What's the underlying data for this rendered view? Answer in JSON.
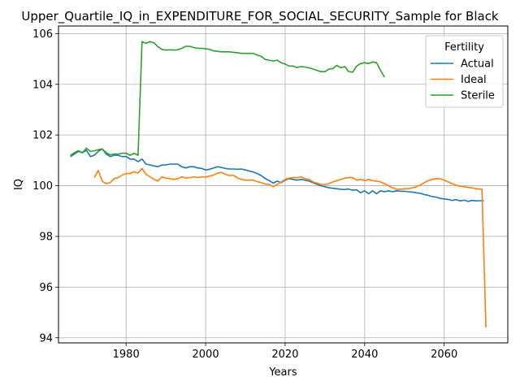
{
  "chart_data": {
    "type": "line",
    "title": "Upper_Quartile_IQ_in_EXPENDITURE_FOR_SOCIAL_SECURITY_Sample for Black",
    "xlabel": "Years",
    "ylabel": "IQ",
    "xlim": [
      1963,
      2076
    ],
    "ylim": [
      93.8,
      106.3
    ],
    "xticks": [
      1980,
      2000,
      2020,
      2040,
      2060
    ],
    "yticks": [
      94,
      96,
      98,
      100,
      102,
      104,
      106
    ],
    "grid": true,
    "legend": {
      "title": "Fertility",
      "position": "upper-right"
    },
    "series": [
      {
        "name": "Actual",
        "color": "#1f77b4",
        "points": [
          [
            1966,
            101.15
          ],
          [
            1967,
            101.25
          ],
          [
            1968,
            101.35
          ],
          [
            1969,
            101.3
          ],
          [
            1970,
            101.4
          ],
          [
            1971,
            101.15
          ],
          [
            1972,
            101.2
          ],
          [
            1973,
            101.35
          ],
          [
            1974,
            101.45
          ],
          [
            1975,
            101.25
          ],
          [
            1976,
            101.15
          ],
          [
            1977,
            101.2
          ],
          [
            1978,
            101.2
          ],
          [
            1979,
            101.15
          ],
          [
            1980,
            101.15
          ],
          [
            1981,
            101.05
          ],
          [
            1982,
            101.05
          ],
          [
            1983,
            100.95
          ],
          [
            1984,
            101.05
          ],
          [
            1985,
            100.85
          ],
          [
            1986,
            100.82
          ],
          [
            1987,
            100.78
          ],
          [
            1988,
            100.75
          ],
          [
            1989,
            100.82
          ],
          [
            1990,
            100.82
          ],
          [
            1991,
            100.85
          ],
          [
            1992,
            100.85
          ],
          [
            1993,
            100.85
          ],
          [
            1994,
            100.75
          ],
          [
            1995,
            100.7
          ],
          [
            1996,
            100.75
          ],
          [
            1997,
            100.75
          ],
          [
            1998,
            100.7
          ],
          [
            1999,
            100.68
          ],
          [
            2000,
            100.62
          ],
          [
            2001,
            100.65
          ],
          [
            2002,
            100.7
          ],
          [
            2003,
            100.75
          ],
          [
            2004,
            100.72
          ],
          [
            2005,
            100.68
          ],
          [
            2006,
            100.66
          ],
          [
            2007,
            100.66
          ],
          [
            2008,
            100.65
          ],
          [
            2009,
            100.66
          ],
          [
            2010,
            100.62
          ],
          [
            2011,
            100.58
          ],
          [
            2012,
            100.54
          ],
          [
            2013,
            100.48
          ],
          [
            2014,
            100.4
          ],
          [
            2015,
            100.28
          ],
          [
            2016,
            100.2
          ],
          [
            2017,
            100.1
          ],
          [
            2018,
            100.18
          ],
          [
            2019,
            100.12
          ],
          [
            2020,
            100.22
          ],
          [
            2021,
            100.28
          ],
          [
            2022,
            100.25
          ],
          [
            2023,
            100.22
          ],
          [
            2024,
            100.25
          ],
          [
            2025,
            100.22
          ],
          [
            2026,
            100.18
          ],
          [
            2027,
            100.12
          ],
          [
            2028,
            100.06
          ],
          [
            2029,
            100.0
          ],
          [
            2030,
            99.96
          ],
          [
            2031,
            99.92
          ],
          [
            2032,
            99.9
          ],
          [
            2033,
            99.88
          ],
          [
            2034,
            99.86
          ],
          [
            2035,
            99.85
          ],
          [
            2036,
            99.87
          ],
          [
            2037,
            99.82
          ],
          [
            2038,
            99.84
          ],
          [
            2039,
            99.72
          ],
          [
            2040,
            99.8
          ],
          [
            2041,
            99.68
          ],
          [
            2042,
            99.8
          ],
          [
            2043,
            99.68
          ],
          [
            2044,
            99.8
          ],
          [
            2045,
            99.76
          ],
          [
            2046,
            99.8
          ],
          [
            2047,
            99.76
          ],
          [
            2048,
            99.8
          ],
          [
            2049,
            99.78
          ],
          [
            2050,
            99.78
          ],
          [
            2051,
            99.76
          ],
          [
            2052,
            99.75
          ],
          [
            2053,
            99.72
          ],
          [
            2054,
            99.7
          ],
          [
            2055,
            99.65
          ],
          [
            2056,
            99.62
          ],
          [
            2057,
            99.57
          ],
          [
            2058,
            99.55
          ],
          [
            2059,
            99.5
          ],
          [
            2060,
            99.48
          ],
          [
            2061,
            99.46
          ],
          [
            2062,
            99.42
          ],
          [
            2063,
            99.45
          ],
          [
            2064,
            99.4
          ],
          [
            2065,
            99.43
          ],
          [
            2066,
            99.38
          ],
          [
            2067,
            99.42
          ],
          [
            2068,
            99.4
          ],
          [
            2069,
            99.41
          ],
          [
            2070,
            99.41
          ]
        ]
      },
      {
        "name": "Ideal",
        "color": "#ff7f0e",
        "points": [
          [
            1972,
            100.32
          ],
          [
            1973,
            100.6
          ],
          [
            1974,
            100.18
          ],
          [
            1975,
            100.08
          ],
          [
            1976,
            100.12
          ],
          [
            1977,
            100.28
          ],
          [
            1978,
            100.32
          ],
          [
            1979,
            100.42
          ],
          [
            1980,
            100.48
          ],
          [
            1981,
            100.48
          ],
          [
            1982,
            100.55
          ],
          [
            1983,
            100.5
          ],
          [
            1984,
            100.68
          ],
          [
            1985,
            100.45
          ],
          [
            1986,
            100.35
          ],
          [
            1987,
            100.25
          ],
          [
            1988,
            100.18
          ],
          [
            1989,
            100.35
          ],
          [
            1990,
            100.3
          ],
          [
            1991,
            100.28
          ],
          [
            1992,
            100.25
          ],
          [
            1993,
            100.28
          ],
          [
            1994,
            100.35
          ],
          [
            1995,
            100.3
          ],
          [
            1996,
            100.32
          ],
          [
            1997,
            100.35
          ],
          [
            1998,
            100.32
          ],
          [
            1999,
            100.35
          ],
          [
            2000,
            100.34
          ],
          [
            2001,
            100.38
          ],
          [
            2002,
            100.42
          ],
          [
            2003,
            100.5
          ],
          [
            2004,
            100.52
          ],
          [
            2005,
            100.45
          ],
          [
            2006,
            100.4
          ],
          [
            2007,
            100.42
          ],
          [
            2008,
            100.3
          ],
          [
            2009,
            100.25
          ],
          [
            2010,
            100.22
          ],
          [
            2011,
            100.22
          ],
          [
            2012,
            100.22
          ],
          [
            2013,
            100.16
          ],
          [
            2014,
            100.12
          ],
          [
            2015,
            100.06
          ],
          [
            2016,
            100.05
          ],
          [
            2017,
            99.96
          ],
          [
            2018,
            100.05
          ],
          [
            2019,
            100.15
          ],
          [
            2020,
            100.25
          ],
          [
            2021,
            100.3
          ],
          [
            2022,
            100.32
          ],
          [
            2023,
            100.32
          ],
          [
            2024,
            100.35
          ],
          [
            2025,
            100.28
          ],
          [
            2026,
            100.25
          ],
          [
            2027,
            100.15
          ],
          [
            2028,
            100.1
          ],
          [
            2029,
            100.05
          ],
          [
            2030,
            100.05
          ],
          [
            2031,
            100.08
          ],
          [
            2032,
            100.15
          ],
          [
            2033,
            100.2
          ],
          [
            2034,
            100.25
          ],
          [
            2035,
            100.3
          ],
          [
            2036,
            100.32
          ],
          [
            2037,
            100.32
          ],
          [
            2038,
            100.22
          ],
          [
            2039,
            100.25
          ],
          [
            2040,
            100.2
          ],
          [
            2041,
            100.25
          ],
          [
            2042,
            100.2
          ],
          [
            2043,
            100.18
          ],
          [
            2044,
            100.15
          ],
          [
            2045,
            100.08
          ],
          [
            2046,
            100.0
          ],
          [
            2047,
            99.92
          ],
          [
            2048,
            99.86
          ],
          [
            2049,
            99.86
          ],
          [
            2050,
            99.88
          ],
          [
            2051,
            99.88
          ],
          [
            2052,
            99.92
          ],
          [
            2053,
            99.96
          ],
          [
            2054,
            100.02
          ],
          [
            2055,
            100.12
          ],
          [
            2056,
            100.2
          ],
          [
            2057,
            100.25
          ],
          [
            2058,
            100.28
          ],
          [
            2059,
            100.27
          ],
          [
            2060,
            100.22
          ],
          [
            2061,
            100.15
          ],
          [
            2062,
            100.08
          ],
          [
            2063,
            100.02
          ],
          [
            2064,
            99.98
          ],
          [
            2065,
            99.96
          ],
          [
            2066,
            99.93
          ],
          [
            2067,
            99.92
          ],
          [
            2068,
            99.88
          ],
          [
            2069,
            99.87
          ],
          [
            2069.5,
            99.85
          ],
          [
            2070.5,
            94.4
          ]
        ]
      },
      {
        "name": "Sterile",
        "color": "#2ca02c",
        "points": [
          [
            1966,
            101.2
          ],
          [
            1967,
            101.3
          ],
          [
            1968,
            101.38
          ],
          [
            1969,
            101.3
          ],
          [
            1970,
            101.48
          ],
          [
            1971,
            101.35
          ],
          [
            1972,
            101.38
          ],
          [
            1973,
            101.42
          ],
          [
            1974,
            101.45
          ],
          [
            1975,
            101.3
          ],
          [
            1976,
            101.22
          ],
          [
            1977,
            101.25
          ],
          [
            1978,
            101.25
          ],
          [
            1979,
            101.28
          ],
          [
            1980,
            101.28
          ],
          [
            1981,
            101.2
          ],
          [
            1982,
            101.28
          ],
          [
            1983,
            101.2
          ],
          [
            1984,
            105.68
          ],
          [
            1985,
            105.62
          ],
          [
            1986,
            105.68
          ],
          [
            1987,
            105.64
          ],
          [
            1988,
            105.48
          ],
          [
            1989,
            105.38
          ],
          [
            1990,
            105.35
          ],
          [
            1991,
            105.36
          ],
          [
            1992,
            105.35
          ],
          [
            1993,
            105.36
          ],
          [
            1994,
            105.42
          ],
          [
            1995,
            105.5
          ],
          [
            1996,
            105.5
          ],
          [
            1997,
            105.45
          ],
          [
            1998,
            105.42
          ],
          [
            1999,
            105.42
          ],
          [
            2000,
            105.4
          ],
          [
            2001,
            105.38
          ],
          [
            2002,
            105.32
          ],
          [
            2003,
            105.3
          ],
          [
            2004,
            105.28
          ],
          [
            2005,
            105.28
          ],
          [
            2006,
            105.28
          ],
          [
            2007,
            105.26
          ],
          [
            2008,
            105.25
          ],
          [
            2009,
            105.22
          ],
          [
            2010,
            105.22
          ],
          [
            2011,
            105.22
          ],
          [
            2012,
            105.22
          ],
          [
            2013,
            105.15
          ],
          [
            2014,
            105.1
          ],
          [
            2015,
            104.98
          ],
          [
            2016,
            104.95
          ],
          [
            2017,
            104.92
          ],
          [
            2018,
            104.95
          ],
          [
            2019,
            104.85
          ],
          [
            2020,
            104.8
          ],
          [
            2021,
            104.72
          ],
          [
            2022,
            104.72
          ],
          [
            2023,
            104.66
          ],
          [
            2024,
            104.7
          ],
          [
            2025,
            104.68
          ],
          [
            2026,
            104.65
          ],
          [
            2027,
            104.6
          ],
          [
            2028,
            104.55
          ],
          [
            2029,
            104.5
          ],
          [
            2030,
            104.5
          ],
          [
            2031,
            104.6
          ],
          [
            2032,
            104.62
          ],
          [
            2033,
            104.75
          ],
          [
            2034,
            104.65
          ],
          [
            2035,
            104.7
          ],
          [
            2036,
            104.5
          ],
          [
            2037,
            104.48
          ],
          [
            2038,
            104.72
          ],
          [
            2039,
            104.82
          ],
          [
            2040,
            104.85
          ],
          [
            2041,
            104.82
          ],
          [
            2042,
            104.88
          ],
          [
            2043,
            104.85
          ],
          [
            2044,
            104.55
          ],
          [
            2045,
            104.28
          ]
        ]
      }
    ]
  }
}
